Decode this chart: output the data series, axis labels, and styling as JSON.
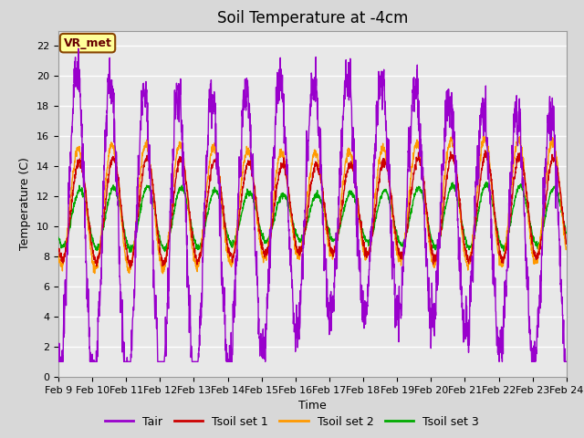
{
  "title": "Soil Temperature at -4cm",
  "xlabel": "Time",
  "ylabel": "Temperature (C)",
  "ylim": [
    0,
    23
  ],
  "yticks": [
    0,
    2,
    4,
    6,
    8,
    10,
    12,
    14,
    16,
    18,
    20,
    22
  ],
  "xtick_labels": [
    "Feb 9",
    "Feb 10",
    "Feb 11",
    "Feb 12",
    "Feb 13",
    "Feb 14",
    "Feb 15",
    "Feb 16",
    "Feb 17",
    "Feb 18",
    "Feb 19",
    "Feb 20",
    "Feb 21",
    "Feb 22",
    "Feb 23",
    "Feb 24"
  ],
  "legend_labels": [
    "Tair",
    "Tsoil set 1",
    "Tsoil set 2",
    "Tsoil set 3"
  ],
  "line_colors": [
    "#9900cc",
    "#cc0000",
    "#ff9900",
    "#00aa00"
  ],
  "annotation_text": "VR_met",
  "annotation_box_facecolor": "#ffff99",
  "annotation_text_color": "#660000",
  "annotation_edge_color": "#884400",
  "fig_bg_color": "#d8d8d8",
  "plot_bg_color": "#e8e8e8",
  "grid_color": "#ffffff",
  "title_fontsize": 12,
  "axis_fontsize": 9,
  "tick_fontsize": 8,
  "legend_fontsize": 9,
  "line_width": 1.0
}
